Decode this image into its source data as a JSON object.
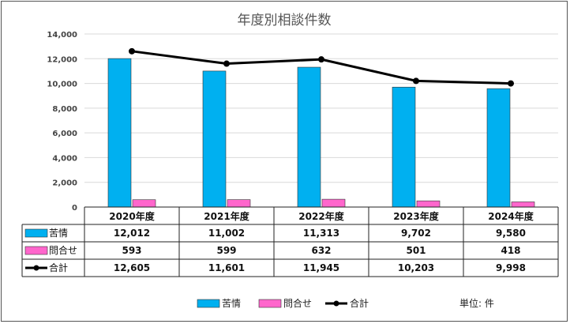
{
  "chart_data": {
    "type": "bar",
    "title": "年度別相談件数",
    "categories": [
      "2020年度",
      "2021年度",
      "2022年度",
      "2023年度",
      "2024年度"
    ],
    "ylim": [
      0,
      14000
    ],
    "yticks": [
      "0",
      "2,000",
      "4,000",
      "6,000",
      "8,000",
      "10,000",
      "12,000",
      "14,000"
    ],
    "grid": true,
    "series": [
      {
        "name": "苦情",
        "kind": "bar",
        "color": "#00B0F0",
        "values": [
          12012,
          11002,
          11313,
          9702,
          9580
        ],
        "labels": [
          "12,012",
          "11,002",
          "11,313",
          "9,702",
          "9,580"
        ]
      },
      {
        "name": "問合せ",
        "kind": "bar",
        "color": "#FF66CC",
        "values": [
          593,
          599,
          632,
          501,
          418
        ],
        "labels": [
          "593",
          "599",
          "632",
          "501",
          "418"
        ]
      },
      {
        "name": "合計",
        "kind": "line",
        "color": "#000000",
        "values": [
          12605,
          11601,
          11945,
          10203,
          9998
        ],
        "labels": [
          "12,605",
          "11,601",
          "11,945",
          "10,203",
          "9,998"
        ]
      }
    ],
    "data_table": true,
    "legend": "bottom",
    "unit_note": "単位: 件"
  }
}
